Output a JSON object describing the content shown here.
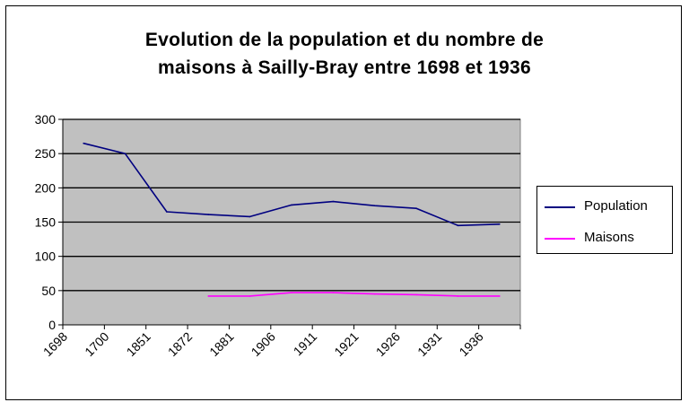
{
  "chart_data": {
    "type": "line",
    "title_line1": "Evolution de la population et du nombre de",
    "title_line2": "maisons à Sailly-Bray entre 1698 et 1936",
    "categories": [
      "1698",
      "1700",
      "1851",
      "1872",
      "1881",
      "1906",
      "1911",
      "1921",
      "1926",
      "1931",
      "1936"
    ],
    "ylim": [
      0,
      300
    ],
    "yticks": [
      "0",
      "50",
      "100",
      "150",
      "200",
      "250",
      "300"
    ],
    "grid": true,
    "legend_position": "right",
    "series": [
      {
        "name": "Population",
        "color": "#000080",
        "values": [
          265,
          250,
          165,
          161,
          158,
          175,
          180,
          174,
          170,
          145,
          147
        ]
      },
      {
        "name": "Maisons",
        "color": "#ff00ff",
        "values": [
          null,
          null,
          null,
          42,
          42,
          47,
          47,
          45,
          44,
          42,
          42
        ]
      }
    ]
  },
  "colors": {
    "plot_background": "#c0c0c0",
    "gridline": "#000000"
  }
}
